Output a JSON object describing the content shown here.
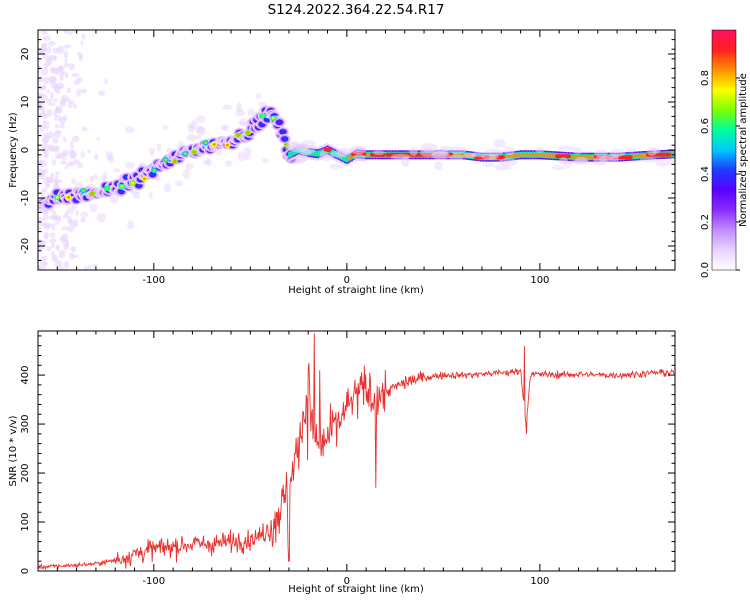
{
  "title": "S124.2022.364.22.54.R17",
  "colors": {
    "snr_line": "#e8312f",
    "spectrogram_background": "#ffffff",
    "colormap": [
      "#ffffff",
      "#e9d3ff",
      "#c28cff",
      "#8a2cff",
      "#5a00ff",
      "#1e3cff",
      "#00c8ff",
      "#00ff9c",
      "#7dff00",
      "#ffff00",
      "#ff9000",
      "#ff2020",
      "#ff1060"
    ]
  },
  "chart_data": [
    {
      "type": "heatmap",
      "title": "",
      "xlabel": "Height of straight line (km)",
      "ylabel": "Frequency (Hz)",
      "xlim": [
        -160,
        170
      ],
      "ylim": [
        -25,
        25
      ],
      "x_ticks": [
        -100,
        0,
        100
      ],
      "x_tick_labels": [
        "-100",
        "0",
        "100"
      ],
      "y_ticks": [
        -20,
        -10,
        0,
        10,
        20
      ],
      "y_tick_labels": [
        "-20",
        "-10",
        "0",
        "10",
        "20"
      ],
      "colorbar": {
        "label": "Normalized spectral amplitude",
        "range": [
          0,
          1
        ],
        "ticks": [
          0,
          0.2,
          0.4,
          0.6,
          0.8
        ],
        "tick_labels": [
          "0.0",
          "0.2",
          "0.4",
          "0.6",
          "0.8"
        ]
      },
      "ridge": {
        "x": [
          -160,
          -150,
          -140,
          -130,
          -120,
          -110,
          -100,
          -90,
          -80,
          -70,
          -60,
          -50,
          -45,
          -40,
          -35,
          -30,
          -25,
          -20,
          -15,
          -10,
          -5,
          0,
          5,
          10,
          20,
          40,
          60,
          70,
          80,
          90,
          100,
          120,
          140,
          160,
          170
        ],
        "frequency": [
          -11,
          -10,
          -9.5,
          -9,
          -8,
          -6.5,
          -4,
          -2,
          0,
          1,
          2,
          4,
          6,
          8,
          5,
          -1,
          0,
          -0.5,
          -0.8,
          0,
          -1,
          -2,
          -0.8,
          -1,
          -1,
          -1,
          -1,
          -1.5,
          -1.5,
          -1,
          -1,
          -1.5,
          -1.5,
          -1,
          -0.8
        ]
      }
    },
    {
      "type": "line",
      "title": "",
      "xlabel": "Height of straight line (km)",
      "ylabel": "SNR (10 * v/v)",
      "xlim": [
        -160,
        170
      ],
      "ylim": [
        0,
        490
      ],
      "x_ticks": [
        -100,
        0,
        100
      ],
      "x_tick_labels": [
        "-100",
        "0",
        "100"
      ],
      "y_ticks": [
        0,
        100,
        200,
        300,
        400
      ],
      "y_tick_labels": [
        "0",
        "100",
        "200",
        "300",
        "400"
      ],
      "series": [
        {
          "x": [
            -160,
            -150,
            -140,
            -130,
            -120,
            -110,
            -100,
            -90,
            -80,
            -70,
            -60,
            -50,
            -45,
            -40,
            -35,
            -30,
            -27,
            -25,
            -22,
            -20,
            -18,
            -15,
            -10,
            -5,
            0,
            5,
            10,
            15,
            20,
            25,
            30,
            40,
            50,
            60,
            70,
            80,
            85,
            90,
            92,
            93,
            95,
            100,
            110,
            120,
            130,
            140,
            150,
            160,
            170
          ],
          "y": [
            8,
            10,
            12,
            15,
            22,
            35,
            45,
            50,
            55,
            55,
            60,
            65,
            70,
            90,
            120,
            180,
            220,
            260,
            320,
            380,
            300,
            250,
            270,
            300,
            330,
            360,
            370,
            350,
            365,
            375,
            385,
            395,
            400,
            400,
            402,
            405,
            405,
            410,
            330,
            300,
            400,
            402,
            400,
            402,
            400,
            400,
            402,
            405,
            405
          ],
          "spikes": [
            {
              "x": -17,
              "y": 485
            },
            {
              "x": -14,
              "y": 410
            },
            {
              "x": -30,
              "y": 20
            },
            {
              "x": 15,
              "y": 170
            },
            {
              "x": 93,
              "y": 280
            },
            {
              "x": 92,
              "y": 460
            }
          ]
        }
      ]
    }
  ]
}
